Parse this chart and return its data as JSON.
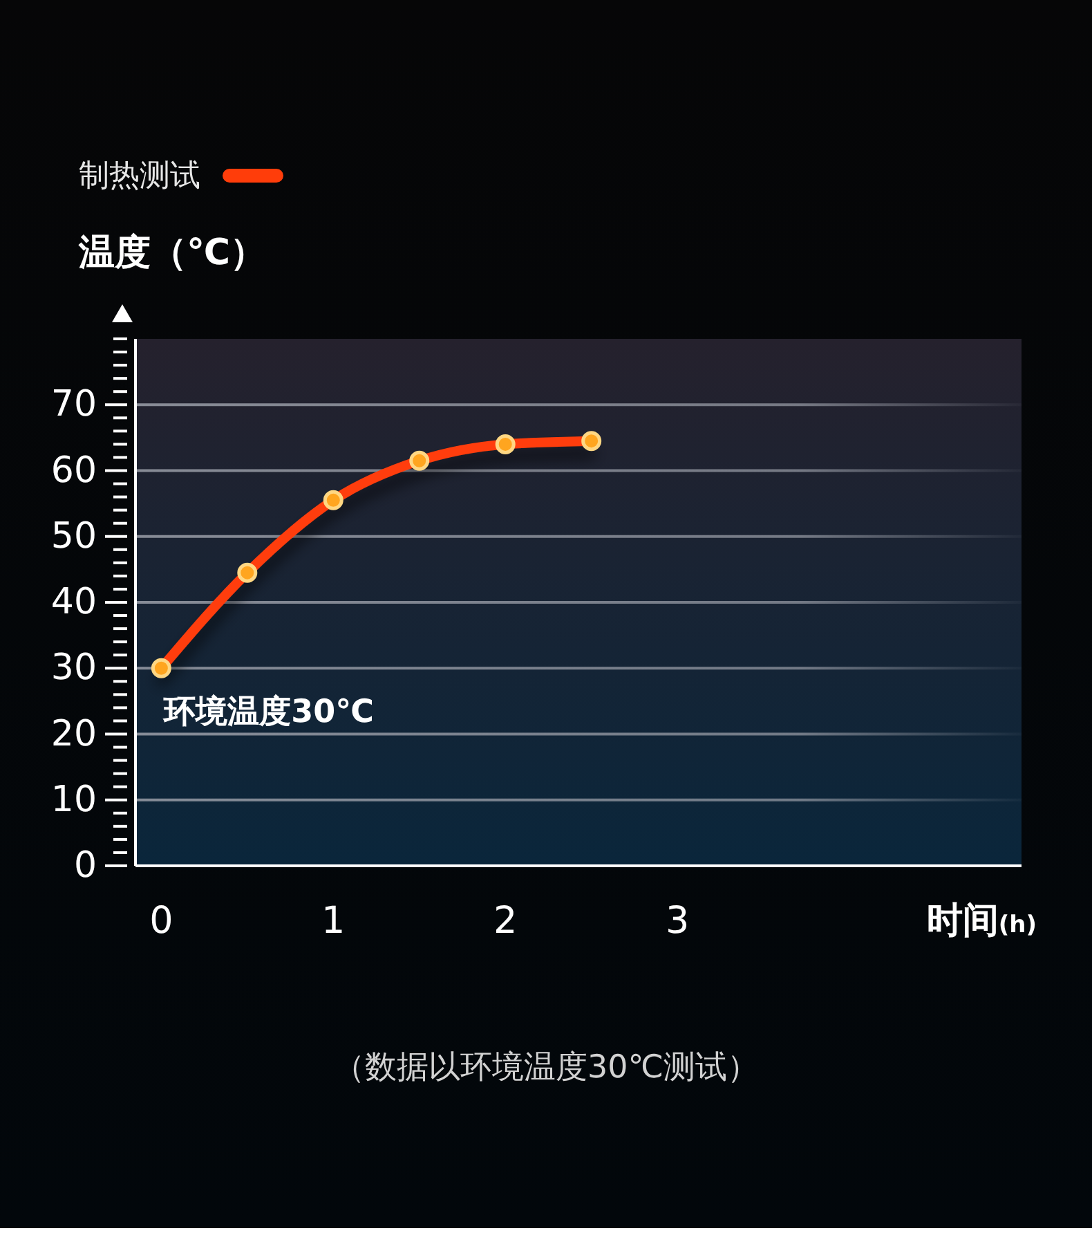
{
  "chart_data": {
    "type": "line",
    "xlabel": "时间(h)",
    "ylabel": "温度（℃）",
    "x": [
      0,
      0.5,
      1,
      1.5,
      2,
      2.5
    ],
    "series": [
      {
        "name": "制热测试",
        "color": "#ff3d0a",
        "values": [
          30,
          44.5,
          55.5,
          61.5,
          64,
          64.5
        ]
      }
    ],
    "xlim": [
      -0.15,
      5
    ],
    "xticks": [
      0,
      1,
      2,
      3
    ],
    "ylim": [
      0,
      80
    ],
    "yticks": [
      0,
      {
        "value": 2,
        "label": null
      },
      {
        "value": 4,
        "label": null
      },
      {
        "value": 6,
        "label": null
      },
      {
        "value": 8,
        "label": null
      },
      10,
      {
        "value": 12,
        "label": null
      },
      {
        "value": 14,
        "label": null
      },
      {
        "value": 16,
        "label": null
      },
      {
        "value": 18,
        "label": null
      },
      20,
      {
        "value": 22,
        "label": null
      },
      {
        "value": 24,
        "label": null
      },
      {
        "value": 26,
        "label": null
      },
      {
        "value": 28,
        "label": null
      },
      30,
      {
        "value": 32,
        "label": null
      },
      {
        "value": 34,
        "label": null
      },
      {
        "value": 36,
        "label": null
      },
      {
        "value": 38,
        "label": null
      },
      40,
      {
        "value": 42,
        "label": null
      },
      {
        "value": 44,
        "label": null
      },
      {
        "value": 46,
        "label": null
      },
      {
        "value": 48,
        "label": null
      },
      50,
      {
        "value": 52,
        "label": null
      },
      {
        "value": 54,
        "label": null
      },
      {
        "value": 56,
        "label": null
      },
      {
        "value": 58,
        "label": null
      },
      60,
      {
        "value": 62,
        "label": null
      },
      {
        "value": 64,
        "label": null
      },
      {
        "value": 66,
        "label": null
      },
      {
        "value": 68,
        "label": null
      },
      70,
      {
        "value": 72,
        "label": null
      },
      {
        "value": 74,
        "label": null
      },
      {
        "value": 76,
        "label": null
      },
      {
        "value": 78,
        "label": null
      },
      {
        "value": 80,
        "label": null
      }
    ],
    "grid": "y",
    "legend": "top left",
    "marker": "circle",
    "line_style": "solid",
    "annotations": [
      {
        "text": "环境温度30℃",
        "x": 0,
        "y": 30
      },
      "（数据以环境温度30℃测试）"
    ]
  }
}
